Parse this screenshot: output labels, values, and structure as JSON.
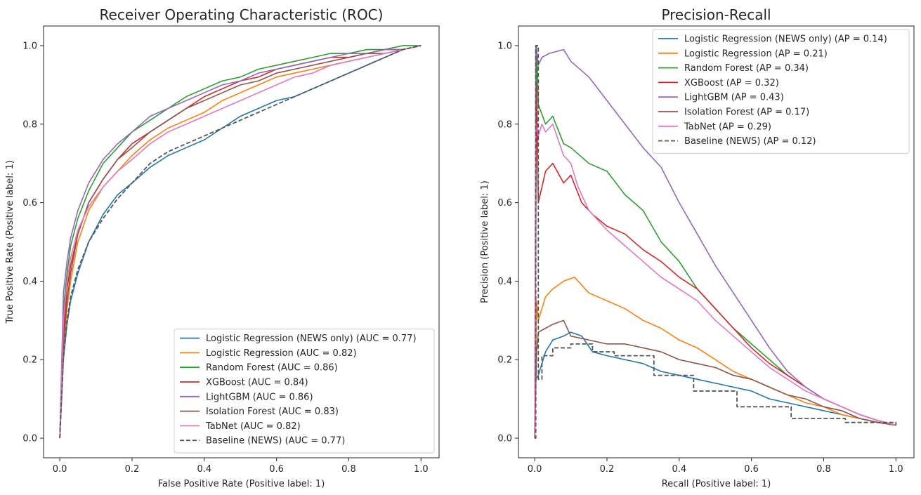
{
  "chart_data": [
    {
      "type": "line",
      "title": "Receiver Operating Characteristic (ROC)",
      "xlabel": "False Positive Rate (Positive label: 1)",
      "ylabel": "True Positive Rate (Positive label: 1)",
      "xlim": [
        -0.045,
        1.05
      ],
      "ylim": [
        -0.05,
        1.05
      ],
      "xticks": [
        "0.0",
        "0.2",
        "0.4",
        "0.6",
        "0.8",
        "1.0"
      ],
      "yticks": [
        "0.0",
        "0.2",
        "0.4",
        "0.6",
        "0.8",
        "1.0"
      ],
      "grid": false,
      "legend_position": "lower-right",
      "series": [
        {
          "name": "Logistic Regression (NEWS only) (AUC = 0.77)",
          "color": "#1f77b4",
          "dash": false,
          "x": [
            0,
            0.01,
            0.02,
            0.03,
            0.05,
            0.08,
            0.12,
            0.16,
            0.2,
            0.25,
            0.3,
            0.35,
            0.4,
            0.45,
            0.5,
            0.55,
            0.6,
            0.65,
            0.7,
            0.75,
            0.8,
            0.85,
            0.9,
            0.95,
            1
          ],
          "y": [
            0,
            0.2,
            0.29,
            0.35,
            0.42,
            0.5,
            0.57,
            0.62,
            0.65,
            0.69,
            0.72,
            0.74,
            0.76,
            0.79,
            0.82,
            0.84,
            0.86,
            0.87,
            0.89,
            0.91,
            0.93,
            0.95,
            0.97,
            0.99,
            1
          ]
        },
        {
          "name": "Logistic Regression (AUC = 0.82)",
          "color": "#ff7f0e",
          "dash": false,
          "x": [
            0,
            0.01,
            0.02,
            0.03,
            0.05,
            0.08,
            0.12,
            0.16,
            0.2,
            0.25,
            0.3,
            0.35,
            0.4,
            0.45,
            0.5,
            0.55,
            0.6,
            0.65,
            0.7,
            0.75,
            0.8,
            0.85,
            0.9,
            0.95,
            1
          ],
          "y": [
            0,
            0.22,
            0.33,
            0.4,
            0.5,
            0.58,
            0.64,
            0.68,
            0.72,
            0.76,
            0.79,
            0.81,
            0.83,
            0.86,
            0.88,
            0.9,
            0.92,
            0.93,
            0.94,
            0.95,
            0.96,
            0.97,
            0.98,
            0.99,
            1
          ]
        },
        {
          "name": "Random Forest (AUC = 0.86)",
          "color": "#2ca02c",
          "dash": false,
          "x": [
            0,
            0.01,
            0.02,
            0.03,
            0.05,
            0.08,
            0.12,
            0.16,
            0.2,
            0.25,
            0.3,
            0.35,
            0.4,
            0.45,
            0.5,
            0.55,
            0.6,
            0.65,
            0.7,
            0.75,
            0.8,
            0.85,
            0.9,
            0.95,
            1
          ],
          "y": [
            0,
            0.33,
            0.42,
            0.49,
            0.56,
            0.63,
            0.7,
            0.74,
            0.78,
            0.81,
            0.84,
            0.87,
            0.89,
            0.91,
            0.92,
            0.94,
            0.95,
            0.96,
            0.97,
            0.98,
            0.98,
            0.99,
            0.99,
            1,
            1
          ]
        },
        {
          "name": "XGBoost (AUC = 0.84)",
          "color": "#d62728",
          "dash": false,
          "x": [
            0,
            0.01,
            0.02,
            0.03,
            0.05,
            0.08,
            0.12,
            0.16,
            0.2,
            0.25,
            0.3,
            0.35,
            0.4,
            0.45,
            0.5,
            0.55,
            0.6,
            0.65,
            0.7,
            0.75,
            0.8,
            0.85,
            0.9,
            0.95,
            1
          ],
          "y": [
            0,
            0.27,
            0.38,
            0.44,
            0.52,
            0.6,
            0.66,
            0.71,
            0.75,
            0.78,
            0.81,
            0.84,
            0.87,
            0.89,
            0.91,
            0.92,
            0.94,
            0.95,
            0.96,
            0.97,
            0.97,
            0.98,
            0.99,
            0.99,
            1
          ]
        },
        {
          "name": "LightGBM (AUC = 0.86)",
          "color": "#9467bd",
          "dash": false,
          "x": [
            0,
            0.01,
            0.02,
            0.03,
            0.05,
            0.08,
            0.12,
            0.16,
            0.2,
            0.25,
            0.3,
            0.35,
            0.4,
            0.45,
            0.5,
            0.55,
            0.6,
            0.65,
            0.7,
            0.75,
            0.8,
            0.85,
            0.9,
            0.95,
            1
          ],
          "y": [
            0,
            0.37,
            0.45,
            0.51,
            0.58,
            0.65,
            0.71,
            0.75,
            0.78,
            0.82,
            0.84,
            0.86,
            0.88,
            0.9,
            0.91,
            0.93,
            0.94,
            0.95,
            0.96,
            0.97,
            0.98,
            0.98,
            0.99,
            0.99,
            1
          ]
        },
        {
          "name": "Isolation Forest (AUC = 0.83)",
          "color": "#8c564b",
          "dash": false,
          "x": [
            0,
            0.01,
            0.02,
            0.03,
            0.05,
            0.08,
            0.12,
            0.16,
            0.2,
            0.25,
            0.3,
            0.35,
            0.4,
            0.45,
            0.5,
            0.55,
            0.6,
            0.65,
            0.7,
            0.75,
            0.8,
            0.85,
            0.9,
            0.95,
            1
          ],
          "y": [
            0,
            0.24,
            0.35,
            0.42,
            0.52,
            0.6,
            0.66,
            0.71,
            0.74,
            0.78,
            0.81,
            0.84,
            0.86,
            0.88,
            0.9,
            0.91,
            0.93,
            0.94,
            0.95,
            0.96,
            0.97,
            0.98,
            0.98,
            0.99,
            1
          ]
        },
        {
          "name": "TabNet (AUC = 0.82)",
          "color": "#e377c2",
          "dash": false,
          "x": [
            0,
            0.01,
            0.02,
            0.03,
            0.05,
            0.08,
            0.12,
            0.16,
            0.2,
            0.25,
            0.3,
            0.35,
            0.4,
            0.45,
            0.5,
            0.55,
            0.6,
            0.65,
            0.7,
            0.75,
            0.8,
            0.85,
            0.9,
            0.95,
            1
          ],
          "y": [
            0,
            0.3,
            0.4,
            0.46,
            0.53,
            0.59,
            0.64,
            0.68,
            0.71,
            0.75,
            0.78,
            0.8,
            0.82,
            0.84,
            0.86,
            0.88,
            0.9,
            0.92,
            0.93,
            0.95,
            0.96,
            0.97,
            0.98,
            0.99,
            1
          ]
        },
        {
          "name": "Baseline (NEWS) (AUC = 0.77)",
          "color": "#555555",
          "dash": true,
          "x": [
            0,
            0.01,
            0.02,
            0.03,
            0.05,
            0.08,
            0.12,
            0.16,
            0.2,
            0.25,
            0.3,
            0.35,
            0.4,
            0.45,
            0.5,
            0.55,
            0.6,
            0.65,
            0.7,
            0.75,
            0.8,
            0.85,
            0.9,
            0.95,
            1
          ],
          "y": [
            0,
            0.21,
            0.3,
            0.36,
            0.43,
            0.5,
            0.56,
            0.61,
            0.65,
            0.7,
            0.73,
            0.75,
            0.77,
            0.79,
            0.81,
            0.83,
            0.85,
            0.87,
            0.89,
            0.91,
            0.93,
            0.95,
            0.97,
            0.99,
            1
          ]
        }
      ]
    },
    {
      "type": "line",
      "title": "Precision-Recall",
      "xlabel": "Recall (Positive label: 1)",
      "ylabel": "Precision (Positive label: 1)",
      "xlim": [
        -0.045,
        1.05
      ],
      "ylim": [
        -0.05,
        1.05
      ],
      "xticks": [
        "0.0",
        "0.2",
        "0.4",
        "0.6",
        "0.8",
        "1.0"
      ],
      "yticks": [
        "0.0",
        "0.2",
        "0.4",
        "0.6",
        "0.8",
        "1.0"
      ],
      "grid": false,
      "legend_position": "upper-right",
      "series": [
        {
          "name": "Logistic Regression (NEWS only) (AP = 0.14)",
          "color": "#1f77b4",
          "dash": false,
          "x": [
            0,
            0.002,
            0.01,
            0.03,
            0.05,
            0.08,
            0.1,
            0.13,
            0.16,
            0.2,
            0.25,
            0.3,
            0.35,
            0.4,
            0.45,
            0.5,
            0.55,
            0.6,
            0.65,
            0.7,
            0.75,
            0.8,
            0.85,
            0.9,
            0.95,
            1
          ],
          "y": [
            0,
            0.15,
            0.16,
            0.22,
            0.25,
            0.26,
            0.27,
            0.26,
            0.22,
            0.21,
            0.2,
            0.19,
            0.17,
            0.16,
            0.15,
            0.14,
            0.13,
            0.12,
            0.1,
            0.09,
            0.08,
            0.07,
            0.06,
            0.05,
            0.04,
            0.033
          ]
        },
        {
          "name": "Logistic Regression (AP = 0.21)",
          "color": "#ff7f0e",
          "dash": false,
          "x": [
            0,
            0.005,
            0.01,
            0.03,
            0.05,
            0.08,
            0.11,
            0.15,
            0.2,
            0.25,
            0.3,
            0.35,
            0.4,
            0.45,
            0.5,
            0.55,
            0.6,
            0.65,
            0.7,
            0.75,
            0.8,
            0.85,
            0.9,
            0.95,
            1
          ],
          "y": [
            0,
            0.35,
            0.3,
            0.36,
            0.38,
            0.4,
            0.41,
            0.37,
            0.35,
            0.33,
            0.3,
            0.28,
            0.25,
            0.23,
            0.2,
            0.17,
            0.15,
            0.13,
            0.11,
            0.09,
            0.08,
            0.06,
            0.05,
            0.04,
            0.033
          ]
        },
        {
          "name": "Random Forest (AP = 0.34)",
          "color": "#2ca02c",
          "dash": false,
          "x": [
            0,
            0.005,
            0.01,
            0.03,
            0.05,
            0.08,
            0.1,
            0.15,
            0.2,
            0.25,
            0.3,
            0.35,
            0.4,
            0.45,
            0.5,
            0.55,
            0.6,
            0.65,
            0.7,
            0.75,
            0.8,
            0.85,
            0.9,
            0.95,
            1
          ],
          "y": [
            0,
            1.0,
            0.85,
            0.8,
            0.82,
            0.75,
            0.74,
            0.7,
            0.68,
            0.62,
            0.58,
            0.5,
            0.45,
            0.38,
            0.33,
            0.28,
            0.24,
            0.2,
            0.16,
            0.13,
            0.1,
            0.08,
            0.06,
            0.045,
            0.033
          ]
        },
        {
          "name": "XGBoost (AP = 0.32)",
          "color": "#d62728",
          "dash": false,
          "x": [
            0,
            0.005,
            0.01,
            0.03,
            0.05,
            0.08,
            0.1,
            0.13,
            0.16,
            0.2,
            0.25,
            0.3,
            0.35,
            0.4,
            0.45,
            0.5,
            0.55,
            0.6,
            0.65,
            0.7,
            0.75,
            0.8,
            0.85,
            0.9,
            0.95,
            1
          ],
          "y": [
            0,
            0.9,
            0.6,
            0.68,
            0.7,
            0.65,
            0.67,
            0.6,
            0.57,
            0.54,
            0.52,
            0.48,
            0.45,
            0.41,
            0.38,
            0.33,
            0.28,
            0.23,
            0.19,
            0.16,
            0.13,
            0.1,
            0.08,
            0.06,
            0.045,
            0.033
          ]
        },
        {
          "name": "LightGBM (AP = 0.43)",
          "color": "#9467bd",
          "dash": false,
          "x": [
            0,
            0.003,
            0.01,
            0.02,
            0.04,
            0.06,
            0.08,
            0.1,
            0.15,
            0.2,
            0.25,
            0.3,
            0.35,
            0.4,
            0.45,
            0.5,
            0.55,
            0.6,
            0.65,
            0.7,
            0.75,
            0.8,
            0.85,
            0.9,
            0.95,
            1
          ],
          "y": [
            0,
            1.0,
            0.95,
            0.97,
            0.98,
            0.985,
            0.99,
            0.96,
            0.92,
            0.86,
            0.8,
            0.74,
            0.69,
            0.6,
            0.52,
            0.44,
            0.37,
            0.3,
            0.23,
            0.17,
            0.13,
            0.1,
            0.08,
            0.06,
            0.045,
            0.033
          ]
        },
        {
          "name": "Isolation Forest (AP = 0.17)",
          "color": "#8c564b",
          "dash": false,
          "x": [
            0,
            0.005,
            0.01,
            0.03,
            0.05,
            0.08,
            0.1,
            0.15,
            0.2,
            0.25,
            0.3,
            0.35,
            0.4,
            0.45,
            0.5,
            0.55,
            0.6,
            0.65,
            0.7,
            0.75,
            0.8,
            0.85,
            0.9,
            0.95,
            1
          ],
          "y": [
            0,
            0.22,
            0.27,
            0.28,
            0.29,
            0.3,
            0.26,
            0.25,
            0.24,
            0.24,
            0.23,
            0.22,
            0.2,
            0.19,
            0.18,
            0.16,
            0.15,
            0.13,
            0.11,
            0.1,
            0.08,
            0.07,
            0.05,
            0.04,
            0.033
          ]
        },
        {
          "name": "TabNet (AP = 0.29)",
          "color": "#e377c2",
          "dash": false,
          "x": [
            0,
            0.003,
            0.01,
            0.02,
            0.03,
            0.05,
            0.08,
            0.1,
            0.12,
            0.15,
            0.2,
            0.25,
            0.3,
            0.35,
            0.4,
            0.45,
            0.5,
            0.55,
            0.6,
            0.65,
            0.7,
            0.75,
            0.8,
            0.85,
            0.9,
            0.95,
            1
          ],
          "y": [
            0,
            0.8,
            0.77,
            0.8,
            0.78,
            0.8,
            0.72,
            0.7,
            0.64,
            0.58,
            0.53,
            0.49,
            0.45,
            0.41,
            0.38,
            0.35,
            0.3,
            0.26,
            0.22,
            0.18,
            0.15,
            0.12,
            0.1,
            0.08,
            0.06,
            0.045,
            0.033
          ]
        },
        {
          "name": "Baseline (NEWS) (AP = 0.12)",
          "color": "#555555",
          "dash": true,
          "step": true,
          "x": [
            0,
            0.003,
            0.01,
            0.02,
            0.05,
            0.1,
            0.16,
            0.22,
            0.33,
            0.44,
            0.56,
            0.71,
            0.86,
            1
          ],
          "y": [
            0,
            1.0,
            0.15,
            0.21,
            0.23,
            0.24,
            0.22,
            0.21,
            0.16,
            0.12,
            0.08,
            0.05,
            0.04,
            0.033
          ]
        }
      ]
    }
  ]
}
